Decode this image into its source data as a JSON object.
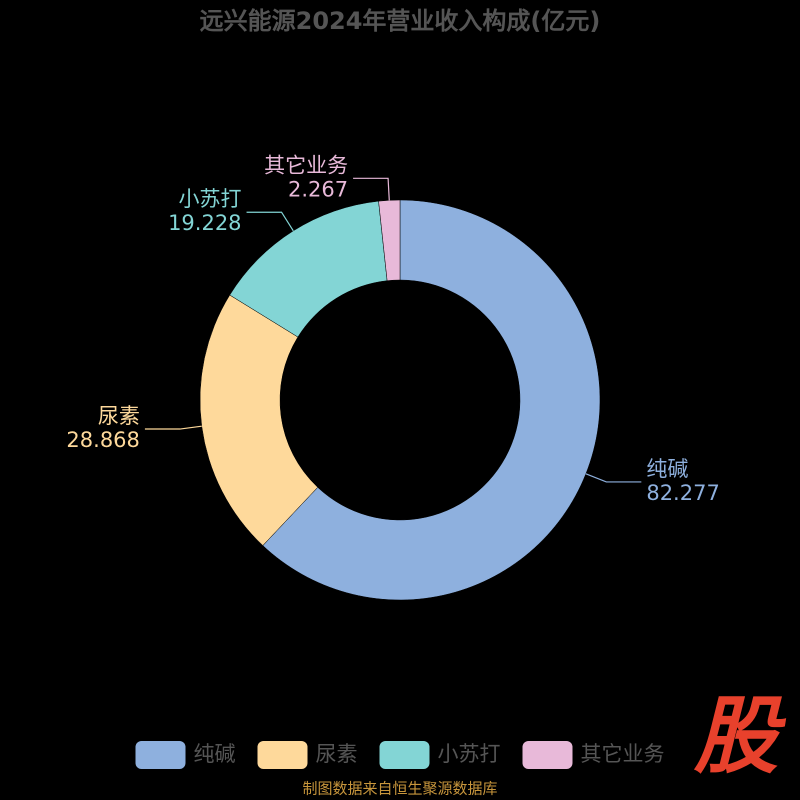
{
  "chart_data": {
    "type": "donut",
    "title": "远兴能源2024年营业收入构成(亿元)",
    "categories": [
      "纯碱",
      "尿素",
      "小苏打",
      "其它业务"
    ],
    "values": [
      82.277,
      28.868,
      19.228,
      2.267
    ],
    "colors": [
      "#8eb0de",
      "#fed99b",
      "#83d5d5",
      "#e8b9d9"
    ],
    "legend": "bottom",
    "source": "制图数据来自恒生聚源数据库",
    "watermark": "股"
  }
}
